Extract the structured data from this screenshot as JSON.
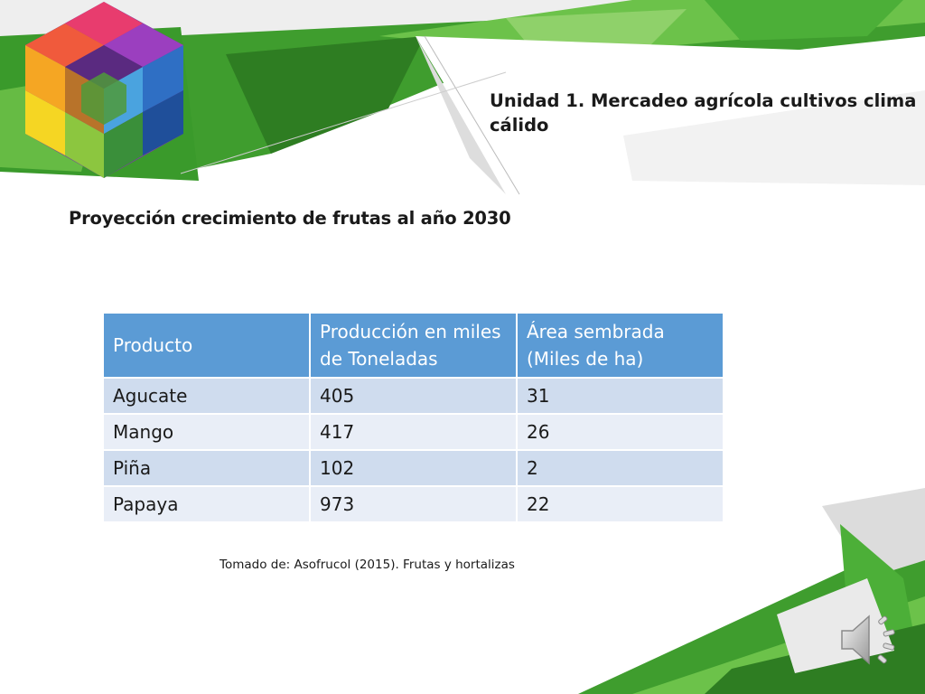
{
  "header": {
    "unit_title": "Unidad 1. Mercadeo agrícola cultivos clima cálido"
  },
  "slide": {
    "title": "Proyección crecimiento de frutas al año 2030",
    "source": "Tomado de:  Asofrucol (2015). Frutas y hortalizas"
  },
  "table": {
    "headers": [
      "Producto",
      "Producción en miles de Toneladas",
      "Área sembrada (Miles de ha)"
    ],
    "rows": [
      [
        "Agucate",
        "405",
        "31"
      ],
      [
        "Mango",
        "417",
        "26"
      ],
      [
        "Piña",
        "102",
        "2"
      ],
      [
        "Papaya",
        "973",
        "22"
      ]
    ]
  },
  "icons": {
    "logo": "logo-cube-icon",
    "audio": "speaker-icon"
  },
  "colors": {
    "header_fill": "#5b9bd5",
    "row_odd": "#cfdcee",
    "row_even": "#e9eef7",
    "accent_green": "#3f9d2e"
  }
}
